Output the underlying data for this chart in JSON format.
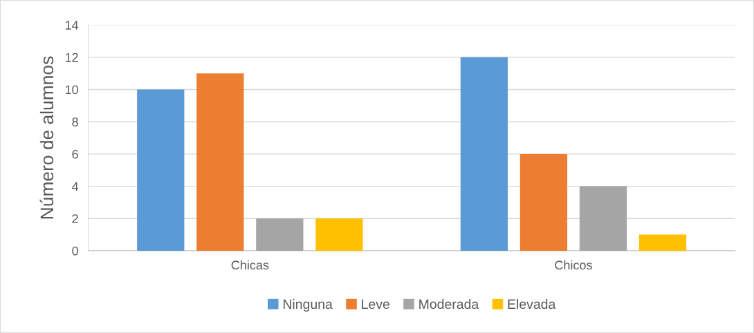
{
  "chart_data": {
    "type": "bar",
    "ylabel": "Número de alumnos",
    "categories": [
      "Chicas",
      "Chicos"
    ],
    "series": [
      {
        "name": "Ninguna",
        "color": "#5b9bd5",
        "values": [
          10,
          12
        ]
      },
      {
        "name": "Leve",
        "color": "#ed7d31",
        "values": [
          11,
          6
        ]
      },
      {
        "name": "Moderada",
        "color": "#a5a5a5",
        "values": [
          2,
          4
        ]
      },
      {
        "name": "Elevada",
        "color": "#ffc000",
        "values": [
          2,
          1
        ]
      }
    ],
    "ylim": [
      0,
      14
    ],
    "yticks": [
      0,
      2,
      4,
      6,
      8,
      10,
      12,
      14
    ],
    "grid": "y",
    "legend": "bottom"
  }
}
